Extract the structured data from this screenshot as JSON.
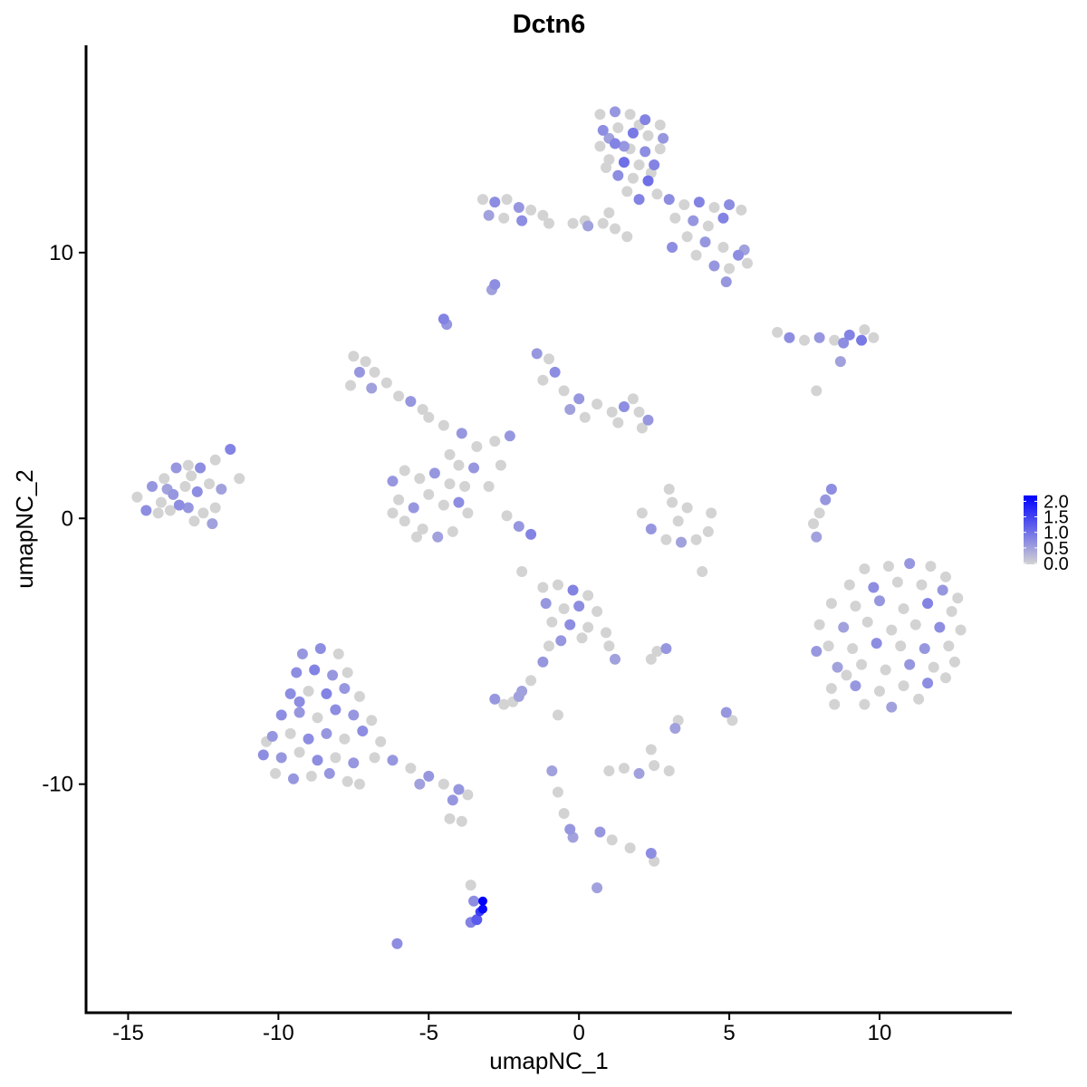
{
  "chart_data": {
    "type": "scatter",
    "title": "Dctn6",
    "xlabel": "umapNC_1",
    "ylabel": "umapNC_2",
    "xlim": [
      -16.4,
      14.4
    ],
    "ylim": [
      -18.6,
      17.8
    ],
    "xticks": [
      -15,
      -10,
      -5,
      0,
      5,
      10
    ],
    "yticks": [
      -10,
      0,
      10
    ],
    "grid": false,
    "legend": {
      "position": "right",
      "type": "colorbar",
      "ticks": [
        "2.0",
        "1.5",
        "1.0",
        "0.5",
        "0.0"
      ],
      "range": [
        0,
        2.1
      ]
    },
    "colors": {
      "low": "#D3D3D3",
      "high": "#0000FF"
    },
    "point_format": [
      "umapNC_1",
      "umapNC_2",
      "expression"
    ],
    "points": [
      [
        0.7,
        15.2,
        0
      ],
      [
        1.2,
        15.3,
        0.6
      ],
      [
        1.7,
        15.2,
        0
      ],
      [
        2.2,
        15.0,
        0.8
      ],
      [
        2.7,
        14.8,
        0
      ],
      [
        0.8,
        14.6,
        0.7
      ],
      [
        1.3,
        14.7,
        0
      ],
      [
        1.8,
        14.5,
        0.9
      ],
      [
        2.3,
        14.4,
        0
      ],
      [
        2.8,
        14.3,
        0.6
      ],
      [
        0.7,
        14.0,
        0
      ],
      [
        1.2,
        14.1,
        0.8
      ],
      [
        1.7,
        13.9,
        0
      ],
      [
        2.2,
        13.8,
        0.7
      ],
      [
        2.7,
        13.9,
        0
      ],
      [
        1.0,
        13.5,
        0
      ],
      [
        1.5,
        13.4,
        1.0
      ],
      [
        2.0,
        13.3,
        0
      ],
      [
        2.5,
        13.3,
        0.8
      ],
      [
        1.3,
        12.9,
        0.7
      ],
      [
        1.8,
        12.8,
        0
      ],
      [
        2.3,
        12.7,
        1.0
      ],
      [
        1.6,
        12.3,
        0
      ],
      [
        2.0,
        12.0,
        0.8
      ],
      [
        2.6,
        12.2,
        0
      ],
      [
        1.0,
        14.3,
        0.5
      ],
      [
        2.0,
        14.8,
        0
      ],
      [
        1.5,
        14.0,
        0.6
      ],
      [
        2.4,
        13.0,
        0
      ],
      [
        0.9,
        13.2,
        0
      ],
      [
        3.0,
        12.0,
        0.7
      ],
      [
        3.5,
        11.8,
        0
      ],
      [
        4.0,
        11.9,
        0.8
      ],
      [
        4.5,
        11.7,
        0
      ],
      [
        5.0,
        11.8,
        0.7
      ],
      [
        5.4,
        11.6,
        0
      ],
      [
        3.2,
        11.3,
        0
      ],
      [
        3.8,
        11.2,
        0.6
      ],
      [
        4.3,
        11.0,
        0
      ],
      [
        4.8,
        11.3,
        0.8
      ],
      [
        3.6,
        10.6,
        0
      ],
      [
        4.2,
        10.4,
        0.6
      ],
      [
        4.8,
        10.2,
        0
      ],
      [
        5.3,
        9.9,
        0.7
      ],
      [
        5.6,
        9.6,
        0
      ],
      [
        4.5,
        9.5,
        0.6
      ],
      [
        5.0,
        9.4,
        0
      ],
      [
        3.9,
        9.9,
        0
      ],
      [
        5.5,
        10.1,
        0.5
      ],
      [
        4.9,
        8.9,
        0.6
      ],
      [
        3.1,
        10.2,
        0.7
      ],
      [
        -3.2,
        12.0,
        0
      ],
      [
        -2.8,
        11.9,
        0.7
      ],
      [
        -2.4,
        12.0,
        0
      ],
      [
        -2.0,
        11.7,
        0.6
      ],
      [
        -1.6,
        11.6,
        0
      ],
      [
        -1.2,
        11.4,
        0
      ],
      [
        -3.0,
        11.4,
        0.5
      ],
      [
        -2.5,
        11.3,
        0
      ],
      [
        -1.9,
        11.2,
        0.7
      ],
      [
        -1.0,
        11.1,
        0
      ],
      [
        -0.2,
        11.1,
        0
      ],
      [
        0.3,
        11.0,
        0.5
      ],
      [
        0.8,
        11.1,
        0
      ],
      [
        1.2,
        10.9,
        0
      ],
      [
        1.6,
        10.6,
        0
      ],
      [
        1.0,
        11.5,
        0
      ],
      [
        0.2,
        11.2,
        0
      ],
      [
        -2.8,
        8.8,
        0.7
      ],
      [
        -2.9,
        8.6,
        0.5
      ],
      [
        -4.5,
        7.5,
        0.8
      ],
      [
        -4.4,
        7.3,
        0.6
      ],
      [
        6.6,
        7.0,
        0
      ],
      [
        7.0,
        6.8,
        0.7
      ],
      [
        7.5,
        6.7,
        0
      ],
      [
        8.0,
        6.8,
        0.6
      ],
      [
        8.5,
        6.7,
        0
      ],
      [
        9.0,
        6.9,
        0.8
      ],
      [
        9.4,
        6.7,
        0.9
      ],
      [
        9.8,
        6.8,
        0
      ],
      [
        9.5,
        7.1,
        0
      ],
      [
        8.8,
        6.6,
        0.7
      ],
      [
        8.7,
        5.9,
        0.5
      ],
      [
        7.9,
        4.8,
        0
      ],
      [
        -7.5,
        6.1,
        0
      ],
      [
        -7.1,
        5.9,
        0
      ],
      [
        -7.3,
        5.5,
        0.6
      ],
      [
        -6.8,
        5.5,
        0
      ],
      [
        -6.4,
        5.1,
        0
      ],
      [
        -6.9,
        4.9,
        0.5
      ],
      [
        -6.0,
        4.6,
        0
      ],
      [
        -5.6,
        4.4,
        0.6
      ],
      [
        -5.2,
        4.1,
        0
      ],
      [
        -5.0,
        3.8,
        0
      ],
      [
        -7.6,
        5.0,
        0
      ],
      [
        -1.4,
        6.2,
        0.6
      ],
      [
        -1.0,
        6.0,
        0
      ],
      [
        -0.8,
        5.5,
        0.7
      ],
      [
        -1.2,
        5.2,
        0
      ],
      [
        -0.5,
        4.8,
        0
      ],
      [
        0.0,
        4.5,
        0.6
      ],
      [
        0.6,
        4.3,
        0
      ],
      [
        1.1,
        4.0,
        0
      ],
      [
        1.5,
        4.2,
        0.7
      ],
      [
        2.0,
        4.0,
        0
      ],
      [
        2.3,
        3.7,
        0.6
      ],
      [
        1.8,
        4.5,
        0
      ],
      [
        1.3,
        3.6,
        0
      ],
      [
        -0.3,
        4.1,
        0.5
      ],
      [
        0.2,
        3.8,
        0
      ],
      [
        2.1,
        3.4,
        0
      ],
      [
        -4.5,
        3.5,
        0
      ],
      [
        -3.9,
        3.2,
        0.6
      ],
      [
        -3.4,
        2.7,
        0
      ],
      [
        -2.8,
        2.9,
        0
      ],
      [
        -2.3,
        3.1,
        0.6
      ],
      [
        -4.3,
        2.4,
        0
      ],
      [
        -3.5,
        1.9,
        0.6
      ],
      [
        -4.0,
        2.0,
        0
      ],
      [
        -2.6,
        2.0,
        0
      ],
      [
        -3.0,
        1.2,
        0
      ],
      [
        -1.6,
        -0.6,
        0.8
      ],
      [
        -2.0,
        -0.3,
        0.6
      ],
      [
        -2.4,
        0.1,
        0
      ],
      [
        -6.2,
        1.4,
        0.6
      ],
      [
        -5.8,
        1.8,
        0
      ],
      [
        -5.3,
        1.5,
        0
      ],
      [
        -4.8,
        1.7,
        0.6
      ],
      [
        -4.3,
        1.3,
        0
      ],
      [
        -3.8,
        1.2,
        0
      ],
      [
        -6.0,
        0.7,
        0
      ],
      [
        -5.5,
        0.4,
        0.6
      ],
      [
        -5.0,
        0.9,
        0
      ],
      [
        -4.5,
        0.5,
        0
      ],
      [
        -4.0,
        0.6,
        0.7
      ],
      [
        -3.7,
        0.2,
        0
      ],
      [
        -5.8,
        -0.1,
        0
      ],
      [
        -5.2,
        -0.4,
        0
      ],
      [
        -4.7,
        -0.7,
        0.5
      ],
      [
        -4.2,
        -0.5,
        0
      ],
      [
        -5.4,
        -0.7,
        0
      ],
      [
        -6.2,
        0.2,
        0
      ],
      [
        -14.7,
        0.8,
        0
      ],
      [
        -14.2,
        1.2,
        0.6
      ],
      [
        -13.8,
        1.5,
        0
      ],
      [
        -13.4,
        1.9,
        0.6
      ],
      [
        -13.0,
        2.0,
        0
      ],
      [
        -12.6,
        1.9,
        0.7
      ],
      [
        -12.1,
        2.2,
        0
      ],
      [
        -11.6,
        2.6,
        0.8
      ],
      [
        -11.3,
        1.5,
        0
      ],
      [
        -14.4,
        0.3,
        0.7
      ],
      [
        -13.9,
        0.6,
        0
      ],
      [
        -13.5,
        0.9,
        0.6
      ],
      [
        -13.1,
        1.2,
        0
      ],
      [
        -12.7,
        1.0,
        0.7
      ],
      [
        -12.3,
        1.3,
        0
      ],
      [
        -11.9,
        1.1,
        0.5
      ],
      [
        -13.6,
        0.3,
        0
      ],
      [
        -13.0,
        0.4,
        0.6
      ],
      [
        -12.5,
        0.2,
        0
      ],
      [
        -12.1,
        0.4,
        0
      ],
      [
        -12.8,
        -0.1,
        0
      ],
      [
        -12.2,
        -0.2,
        0.5
      ],
      [
        -14.0,
        0.2,
        0
      ],
      [
        -13.3,
        0.5,
        0.7
      ],
      [
        -12.9,
        1.6,
        0
      ],
      [
        -13.7,
        1.1,
        0.5
      ],
      [
        2.1,
        0.2,
        0
      ],
      [
        2.4,
        -0.4,
        0.6
      ],
      [
        2.9,
        -0.8,
        0
      ],
      [
        3.4,
        -0.9,
        0.5
      ],
      [
        3.9,
        -0.8,
        0
      ],
      [
        4.3,
        -0.5,
        0
      ],
      [
        3.1,
        0.6,
        0
      ],
      [
        3.3,
        -0.1,
        0
      ],
      [
        3.6,
        0.4,
        0
      ],
      [
        4.4,
        0.2,
        0
      ],
      [
        3.0,
        1.1,
        0
      ],
      [
        4.1,
        -2.0,
        0
      ],
      [
        8.4,
        1.1,
        0.7
      ],
      [
        8.2,
        0.7,
        0.6
      ],
      [
        8.0,
        0.2,
        0
      ],
      [
        7.8,
        -0.2,
        0
      ],
      [
        7.9,
        -0.7,
        0.5
      ],
      [
        9.5,
        -1.9,
        0
      ],
      [
        10.3,
        -1.8,
        0
      ],
      [
        11.0,
        -1.7,
        0.6
      ],
      [
        11.7,
        -1.8,
        0
      ],
      [
        12.2,
        -2.2,
        0
      ],
      [
        9.0,
        -2.5,
        0
      ],
      [
        9.8,
        -2.6,
        0.7
      ],
      [
        10.6,
        -2.4,
        0
      ],
      [
        11.4,
        -2.5,
        0
      ],
      [
        12.1,
        -2.7,
        0.6
      ],
      [
        12.6,
        -3.0,
        0
      ],
      [
        8.4,
        -3.2,
        0
      ],
      [
        9.2,
        -3.3,
        0
      ],
      [
        10.0,
        -3.1,
        0.6
      ],
      [
        10.8,
        -3.4,
        0
      ],
      [
        11.6,
        -3.2,
        0.8
      ],
      [
        12.4,
        -3.5,
        0
      ],
      [
        8.0,
        -4.0,
        0
      ],
      [
        8.8,
        -4.1,
        0.5
      ],
      [
        9.6,
        -3.9,
        0
      ],
      [
        10.4,
        -4.2,
        0
      ],
      [
        11.2,
        -4.0,
        0
      ],
      [
        12.0,
        -4.1,
        0.7
      ],
      [
        12.7,
        -4.2,
        0
      ],
      [
        8.3,
        -4.8,
        0
      ],
      [
        9.1,
        -4.9,
        0
      ],
      [
        9.9,
        -4.7,
        0.7
      ],
      [
        10.7,
        -4.8,
        0
      ],
      [
        11.5,
        -4.9,
        0.6
      ],
      [
        12.3,
        -4.8,
        0
      ],
      [
        8.6,
        -5.6,
        0.5
      ],
      [
        9.4,
        -5.5,
        0
      ],
      [
        10.2,
        -5.7,
        0
      ],
      [
        11.0,
        -5.5,
        0.6
      ],
      [
        11.8,
        -5.6,
        0
      ],
      [
        12.5,
        -5.4,
        0
      ],
      [
        8.4,
        -6.4,
        0
      ],
      [
        9.2,
        -6.3,
        0.6
      ],
      [
        10.0,
        -6.5,
        0
      ],
      [
        10.8,
        -6.3,
        0
      ],
      [
        11.6,
        -6.2,
        0.7
      ],
      [
        12.2,
        -6.0,
        0
      ],
      [
        8.5,
        -7.0,
        0
      ],
      [
        9.5,
        -7.0,
        0
      ],
      [
        10.4,
        -7.1,
        0.5
      ],
      [
        11.3,
        -6.8,
        0
      ],
      [
        7.9,
        -5.0,
        0.6
      ],
      [
        8.9,
        -5.9,
        0
      ],
      [
        -1.2,
        -2.6,
        0
      ],
      [
        -0.7,
        -2.5,
        0
      ],
      [
        -0.2,
        -2.7,
        0.8
      ],
      [
        0.3,
        -2.9,
        0
      ],
      [
        -1.1,
        -3.2,
        0.6
      ],
      [
        -0.5,
        -3.4,
        0
      ],
      [
        0.0,
        -3.3,
        0.7
      ],
      [
        0.6,
        -3.5,
        0
      ],
      [
        -0.9,
        -3.9,
        0
      ],
      [
        -0.3,
        -4.0,
        0.7
      ],
      [
        0.3,
        -4.1,
        0
      ],
      [
        0.9,
        -4.3,
        0
      ],
      [
        -0.6,
        -4.6,
        0.6
      ],
      [
        0.1,
        -4.5,
        0
      ],
      [
        1.0,
        -4.8,
        0
      ],
      [
        1.2,
        -5.3,
        0.5
      ],
      [
        -1.0,
        -4.8,
        0
      ],
      [
        -1.2,
        -5.4,
        0.6
      ],
      [
        -1.6,
        -6.1,
        0
      ],
      [
        -1.9,
        -6.5,
        0.5
      ],
      [
        2.9,
        -4.9,
        0.6
      ],
      [
        2.6,
        -5.0,
        0
      ],
      [
        2.4,
        -5.3,
        0
      ],
      [
        -9.2,
        -5.1,
        0.6
      ],
      [
        -8.6,
        -4.9,
        0.7
      ],
      [
        -8.0,
        -5.1,
        0
      ],
      [
        -9.4,
        -5.8,
        0.7
      ],
      [
        -8.8,
        -5.7,
        0.8
      ],
      [
        -8.2,
        -5.9,
        0.6
      ],
      [
        -7.7,
        -5.8,
        0
      ],
      [
        -9.6,
        -6.6,
        0.7
      ],
      [
        -9.0,
        -6.5,
        0
      ],
      [
        -8.4,
        -6.6,
        0.8
      ],
      [
        -7.8,
        -6.4,
        0.6
      ],
      [
        -7.3,
        -6.7,
        0
      ],
      [
        -9.9,
        -7.4,
        0.7
      ],
      [
        -9.3,
        -7.3,
        0.6
      ],
      [
        -8.7,
        -7.5,
        0
      ],
      [
        -8.1,
        -7.2,
        0.7
      ],
      [
        -7.5,
        -7.4,
        0.6
      ],
      [
        -6.9,
        -7.6,
        0
      ],
      [
        -10.2,
        -8.2,
        0.6
      ],
      [
        -9.6,
        -8.1,
        0
      ],
      [
        -9.0,
        -8.3,
        0.7
      ],
      [
        -8.4,
        -8.1,
        0.6
      ],
      [
        -7.8,
        -8.3,
        0
      ],
      [
        -7.2,
        -8.0,
        0.7
      ],
      [
        -6.6,
        -8.4,
        0
      ],
      [
        -10.5,
        -8.9,
        0.7
      ],
      [
        -9.9,
        -9.0,
        0.6
      ],
      [
        -9.3,
        -8.8,
        0
      ],
      [
        -8.7,
        -9.1,
        0.7
      ],
      [
        -8.1,
        -9.0,
        0
      ],
      [
        -7.5,
        -9.2,
        0.6
      ],
      [
        -6.8,
        -9.0,
        0
      ],
      [
        -6.2,
        -9.1,
        0.6
      ],
      [
        -5.6,
        -9.4,
        0
      ],
      [
        -10.1,
        -9.6,
        0
      ],
      [
        -9.5,
        -9.8,
        0.6
      ],
      [
        -8.9,
        -9.7,
        0
      ],
      [
        -8.3,
        -9.6,
        0.6
      ],
      [
        -7.7,
        -9.9,
        0
      ],
      [
        -5.0,
        -9.7,
        0.6
      ],
      [
        -4.5,
        -10.0,
        0
      ],
      [
        -4.0,
        -10.2,
        0.6
      ],
      [
        -3.7,
        -10.4,
        0
      ],
      [
        -5.3,
        -10.0,
        0.5
      ],
      [
        -4.2,
        -10.6,
        0.6
      ],
      [
        -10.4,
        -8.4,
        0
      ],
      [
        -9.3,
        -6.9,
        0.7
      ],
      [
        -7.3,
        -10.0,
        0
      ],
      [
        -4.3,
        -11.3,
        0
      ],
      [
        -3.9,
        -11.4,
        0
      ],
      [
        -2.8,
        -6.8,
        0.6
      ],
      [
        -2.5,
        -7.0,
        0
      ],
      [
        -2.2,
        -6.9,
        0
      ],
      [
        -2.0,
        -6.7,
        0.5
      ],
      [
        -0.7,
        -7.4,
        0
      ],
      [
        3.3,
        -7.6,
        0
      ],
      [
        3.2,
        -7.9,
        0.5
      ],
      [
        4.9,
        -7.3,
        0.6
      ],
      [
        5.1,
        -7.6,
        0
      ],
      [
        1.0,
        -9.5,
        0
      ],
      [
        1.5,
        -9.4,
        0
      ],
      [
        2.0,
        -9.6,
        0.5
      ],
      [
        2.5,
        -9.3,
        0
      ],
      [
        3.0,
        -9.5,
        0
      ],
      [
        2.4,
        -8.7,
        0
      ],
      [
        -0.9,
        -9.5,
        0.5
      ],
      [
        -0.7,
        -10.3,
        0
      ],
      [
        -0.5,
        -11.1,
        0
      ],
      [
        -0.3,
        -11.7,
        0.6
      ],
      [
        -0.2,
        -12.0,
        0.5
      ],
      [
        0.7,
        -11.8,
        0.6
      ],
      [
        1.1,
        -12.1,
        0
      ],
      [
        1.7,
        -12.4,
        0
      ],
      [
        2.4,
        -12.6,
        0.7
      ],
      [
        2.5,
        -12.9,
        0
      ],
      [
        0.6,
        -13.9,
        0.5
      ],
      [
        -3.6,
        -13.8,
        0
      ],
      [
        -3.5,
        -14.4,
        0.7
      ],
      [
        -3.3,
        -14.8,
        1.5
      ],
      [
        -3.2,
        -14.7,
        2.0
      ],
      [
        -3.4,
        -15.1,
        1.2
      ],
      [
        -3.6,
        -15.2,
        0.8
      ],
      [
        -3.2,
        -14.4,
        2.1
      ],
      [
        -6.05,
        -16.0,
        0.7
      ],
      [
        -1.9,
        -2.0,
        0
      ]
    ]
  }
}
